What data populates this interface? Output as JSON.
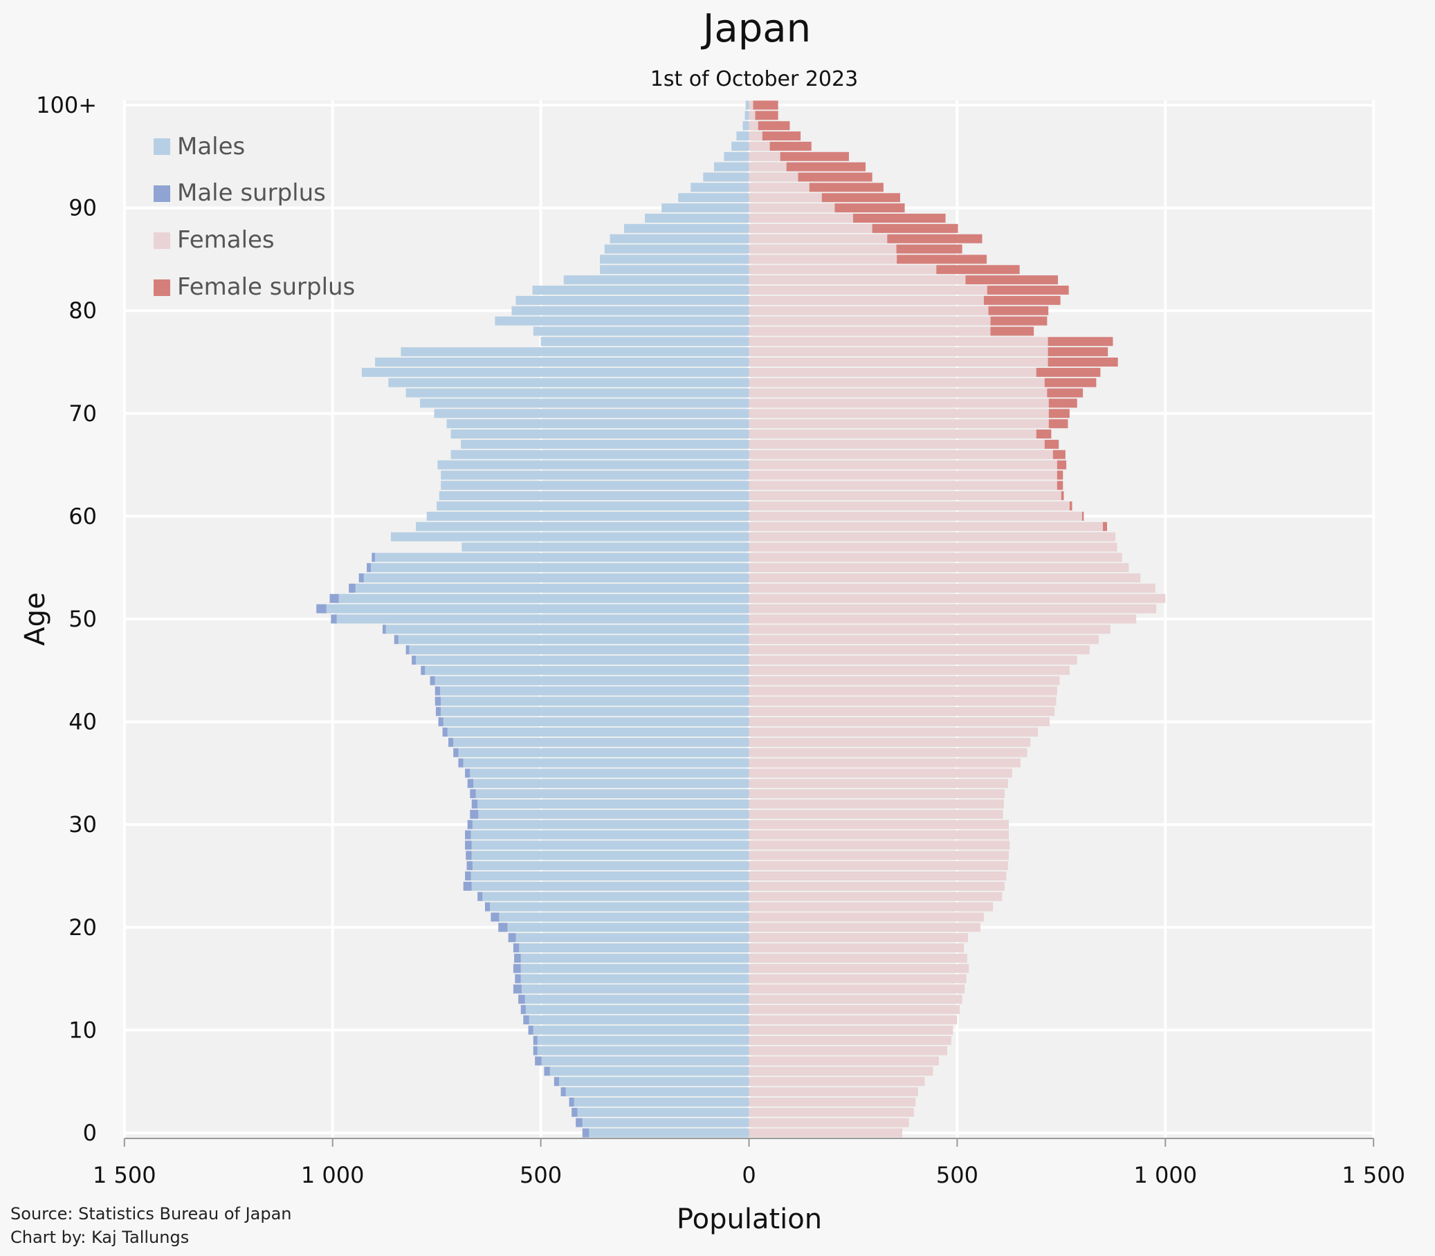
{
  "chart_data": {
    "type": "bar",
    "title": "Japan",
    "subtitle": "1st of October 2023",
    "xlabel": "Population",
    "ylabel": "Age",
    "xlim": [
      -1500,
      1500
    ],
    "x_ticks": [
      -1500,
      -1000,
      -500,
      0,
      500,
      1000,
      1500
    ],
    "x_tick_labels": [
      "1 500",
      "1 000",
      "500",
      "0",
      "500",
      "1 000",
      "1 500"
    ],
    "y_ticks": [
      0,
      10,
      20,
      30,
      40,
      50,
      60,
      70,
      80,
      90,
      100
    ],
    "y_tick_labels": [
      "0",
      "10",
      "20",
      "30",
      "40",
      "50",
      "60",
      "70",
      "80",
      "90",
      "100+"
    ],
    "grid": true,
    "legend_position": "top-left",
    "legend": [
      "Males",
      "Male surplus",
      "Females",
      "Female surplus"
    ],
    "colors": {
      "males": "#b6cfe4",
      "male_surplus": "#8fa4d3",
      "females": "#e9d3d4",
      "female_surplus": "#d57f7b",
      "grid": "#ffffff",
      "axis": "#999999",
      "background": "#f7f7f7"
    },
    "ages": [
      0,
      1,
      2,
      3,
      4,
      5,
      6,
      7,
      8,
      9,
      10,
      11,
      12,
      13,
      14,
      15,
      16,
      17,
      18,
      19,
      20,
      21,
      22,
      23,
      24,
      25,
      26,
      27,
      28,
      29,
      30,
      31,
      32,
      33,
      34,
      35,
      36,
      37,
      38,
      39,
      40,
      41,
      42,
      43,
      44,
      45,
      46,
      47,
      48,
      49,
      50,
      51,
      52,
      53,
      54,
      55,
      56,
      57,
      58,
      59,
      60,
      61,
      62,
      63,
      64,
      65,
      66,
      67,
      68,
      69,
      70,
      71,
      72,
      73,
      74,
      75,
      76,
      77,
      78,
      79,
      80,
      81,
      82,
      83,
      84,
      85,
      86,
      87,
      88,
      89,
      90,
      91,
      92,
      93,
      94,
      95,
      96,
      97,
      98,
      99,
      100
    ],
    "series": [
      {
        "name": "Males",
        "values": [
          384,
          400,
          412,
          420,
          440,
          456,
          478,
          498,
          508,
          508,
          518,
          528,
          536,
          538,
          546,
          548,
          548,
          548,
          552,
          560,
          580,
          600,
          622,
          640,
          666,
          668,
          664,
          666,
          666,
          668,
          664,
          650,
          652,
          656,
          662,
          670,
          686,
          698,
          710,
          724,
          734,
          740,
          740,
          742,
          754,
          778,
          800,
          816,
          842,
          872,
          990,
          1015,
          985,
          945,
          925,
          908,
          898,
          690,
          860,
          800,
          774,
          750,
          744,
          740,
          740,
          748,
          716,
          692,
          716,
          726,
          756,
          790,
          824,
          866,
          930,
          898,
          836,
          500,
          518,
          610,
          570,
          560,
          520,
          445,
          358,
          358,
          347,
          334,
          300,
          250,
          210,
          170,
          140,
          110,
          84,
          60,
          42,
          30,
          15,
          10,
          8
        ],
        "surplus_values": [
          16,
          16,
          14,
          12,
          12,
          12,
          14,
          16,
          10,
          10,
          12,
          14,
          12,
          16,
          20,
          14,
          18,
          16,
          14,
          18,
          22,
          20,
          12,
          12,
          20,
          14,
          14,
          14,
          16,
          14,
          12,
          20,
          14,
          14,
          14,
          12,
          12,
          12,
          12,
          12,
          12,
          12,
          14,
          12,
          12,
          10,
          10,
          8,
          10,
          8,
          14,
          24,
          22,
          16,
          12,
          10,
          8,
          0,
          0,
          0,
          0,
          0,
          0,
          0,
          0,
          0,
          0,
          0,
          0,
          0,
          0,
          0,
          0,
          0,
          0,
          0,
          0,
          0,
          0,
          0,
          0,
          0,
          0,
          0,
          0,
          0,
          0,
          0,
          0,
          0,
          0,
          0,
          0,
          0,
          0,
          0,
          0,
          0,
          0,
          0,
          0
        ]
      },
      {
        "name": "Females",
        "values": [
          368,
          384,
          396,
          400,
          406,
          422,
          442,
          456,
          476,
          486,
          490,
          500,
          506,
          512,
          518,
          522,
          528,
          524,
          516,
          526,
          556,
          564,
          586,
          608,
          614,
          618,
          622,
          624,
          626,
          624,
          624,
          610,
          612,
          614,
          622,
          632,
          652,
          668,
          676,
          694,
          722,
          734,
          738,
          740,
          746,
          770,
          788,
          818,
          840,
          868,
          930,
          978,
          1000,
          976,
          940,
          912,
          896,
          884,
          880,
          850,
          800,
          770,
          750,
          740,
          740,
          740,
          730,
          710,
          690,
          720,
          720,
          720,
          716,
          710,
          690,
          718,
          718,
          718,
          580,
          580,
          575,
          564,
          572,
          520,
          450,
          355,
          354,
          332,
          296,
          250,
          206,
          175,
          145,
          118,
          90,
          75,
          50,
          32,
          22,
          15,
          10
        ],
        "surplus_values": [
          0,
          0,
          0,
          0,
          0,
          0,
          0,
          0,
          0,
          0,
          0,
          0,
          0,
          0,
          0,
          0,
          0,
          0,
          0,
          0,
          0,
          0,
          0,
          0,
          0,
          0,
          0,
          0,
          0,
          0,
          0,
          0,
          0,
          0,
          0,
          0,
          0,
          0,
          0,
          0,
          0,
          0,
          0,
          0,
          0,
          0,
          0,
          0,
          0,
          0,
          0,
          0,
          0,
          0,
          0,
          0,
          0,
          0,
          0,
          10,
          4,
          6,
          6,
          14,
          14,
          22,
          30,
          34,
          36,
          46,
          50,
          68,
          86,
          124,
          154,
          168,
          144,
          156,
          104,
          136,
          144,
          184,
          196,
          222,
          200,
          216,
          158,
          228,
          206,
          222,
          168,
          188,
          178,
          178,
          190,
          165,
          100,
          92,
          76,
          55,
          60
        ]
      }
    ],
    "footer": {
      "source": "Source: Statistics Bureau of Japan",
      "credit": "Chart by: Kaj Tallungs"
    }
  }
}
